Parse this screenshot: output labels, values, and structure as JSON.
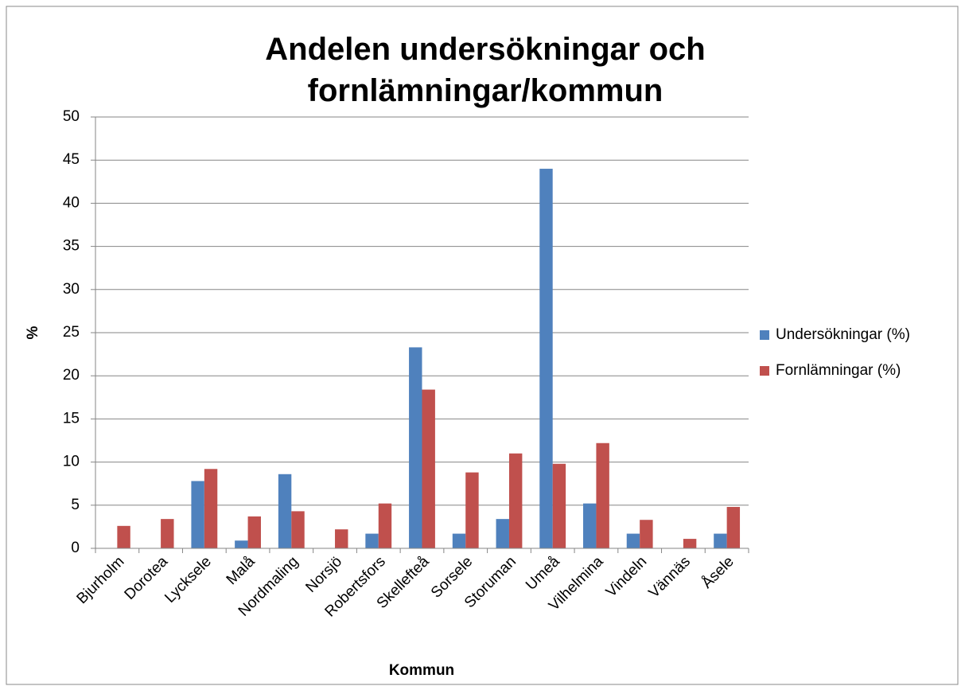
{
  "chart_data": {
    "type": "bar",
    "title": "Andelen undersökningar och fornlämningar/kommun",
    "x_label": "Kommun",
    "y_label": "%",
    "categories": [
      "Bjurholm",
      "Dorotea",
      "Lycksele",
      "Malå",
      "Nordmaling",
      "Norsjö",
      "Robertsfors",
      "Skellefteå",
      "Sorsele",
      "Storuman",
      "Umeå",
      "Vilhelmina",
      "Vindeln",
      "Vännäs",
      "Åsele"
    ],
    "series": [
      {
        "name": "Undersökningar (%)",
        "color": "#4f81bd",
        "values": [
          0,
          0,
          7.8,
          0.9,
          8.6,
          0,
          1.7,
          23.3,
          1.7,
          3.4,
          44,
          5.2,
          1.7,
          0,
          1.7
        ]
      },
      {
        "name": "Fornlämningar (%)",
        "color": "#c0504d",
        "values": [
          2.6,
          3.4,
          9.2,
          3.7,
          4.3,
          2.2,
          5.2,
          18.4,
          8.8,
          11.0,
          9.8,
          12.2,
          3.3,
          1.1,
          4.8
        ]
      }
    ],
    "ylim": [
      0,
      50
    ],
    "yticks": [
      0,
      5,
      10,
      15,
      20,
      25,
      30,
      35,
      40,
      45,
      50
    ],
    "grid": true,
    "legend": "right"
  }
}
